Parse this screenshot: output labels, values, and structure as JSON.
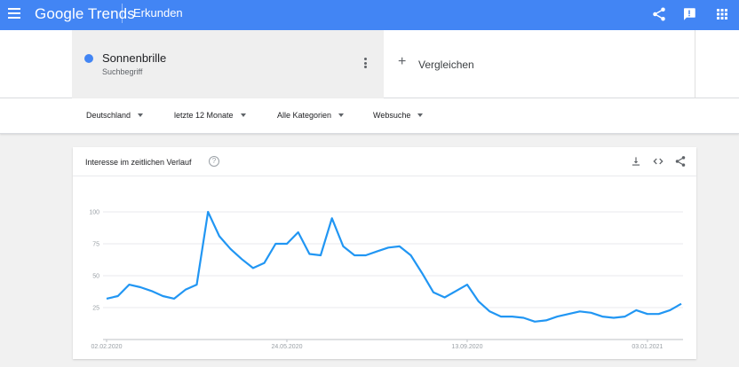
{
  "header": {
    "brand": "Google Trends",
    "section": "Erkunden",
    "icons": [
      "menu-icon",
      "share-icon",
      "feedback-icon",
      "apps-icon"
    ]
  },
  "term": {
    "name": "Sonnenbrille",
    "type": "Suchbegriff",
    "color": "#4285f4"
  },
  "compare": {
    "label": "Vergleichen"
  },
  "filters": [
    {
      "label": "Deutschland"
    },
    {
      "label": "letzte 12 Monate"
    },
    {
      "label": "Alle Kategorien"
    },
    {
      "label": "Websuche"
    }
  ],
  "card": {
    "title": "Interesse im zeitlichen Verlauf",
    "help": "?"
  },
  "chart_data": {
    "type": "line",
    "title": "Interesse im zeitlichen Verlauf",
    "ylim": [
      0,
      100
    ],
    "yticks": [
      "25",
      "50",
      "75",
      "100"
    ],
    "xtick_labels": [
      "02.02.2020",
      "24.05.2020",
      "13.09.2020",
      "03.01.2021"
    ],
    "grid": true,
    "color": "#2196f3",
    "series": [
      {
        "values": [
          32,
          34,
          43,
          41,
          38,
          34,
          32,
          39,
          43,
          100,
          81,
          71,
          63,
          56,
          60,
          75,
          75,
          84,
          67,
          66,
          95,
          73,
          66,
          66,
          69,
          72,
          73,
          66,
          52,
          37,
          33,
          38,
          43,
          30,
          22,
          18,
          18,
          17,
          14,
          15,
          18,
          20,
          22,
          21,
          18,
          17,
          18,
          23,
          20,
          20,
          23,
          28
        ]
      }
    ]
  }
}
